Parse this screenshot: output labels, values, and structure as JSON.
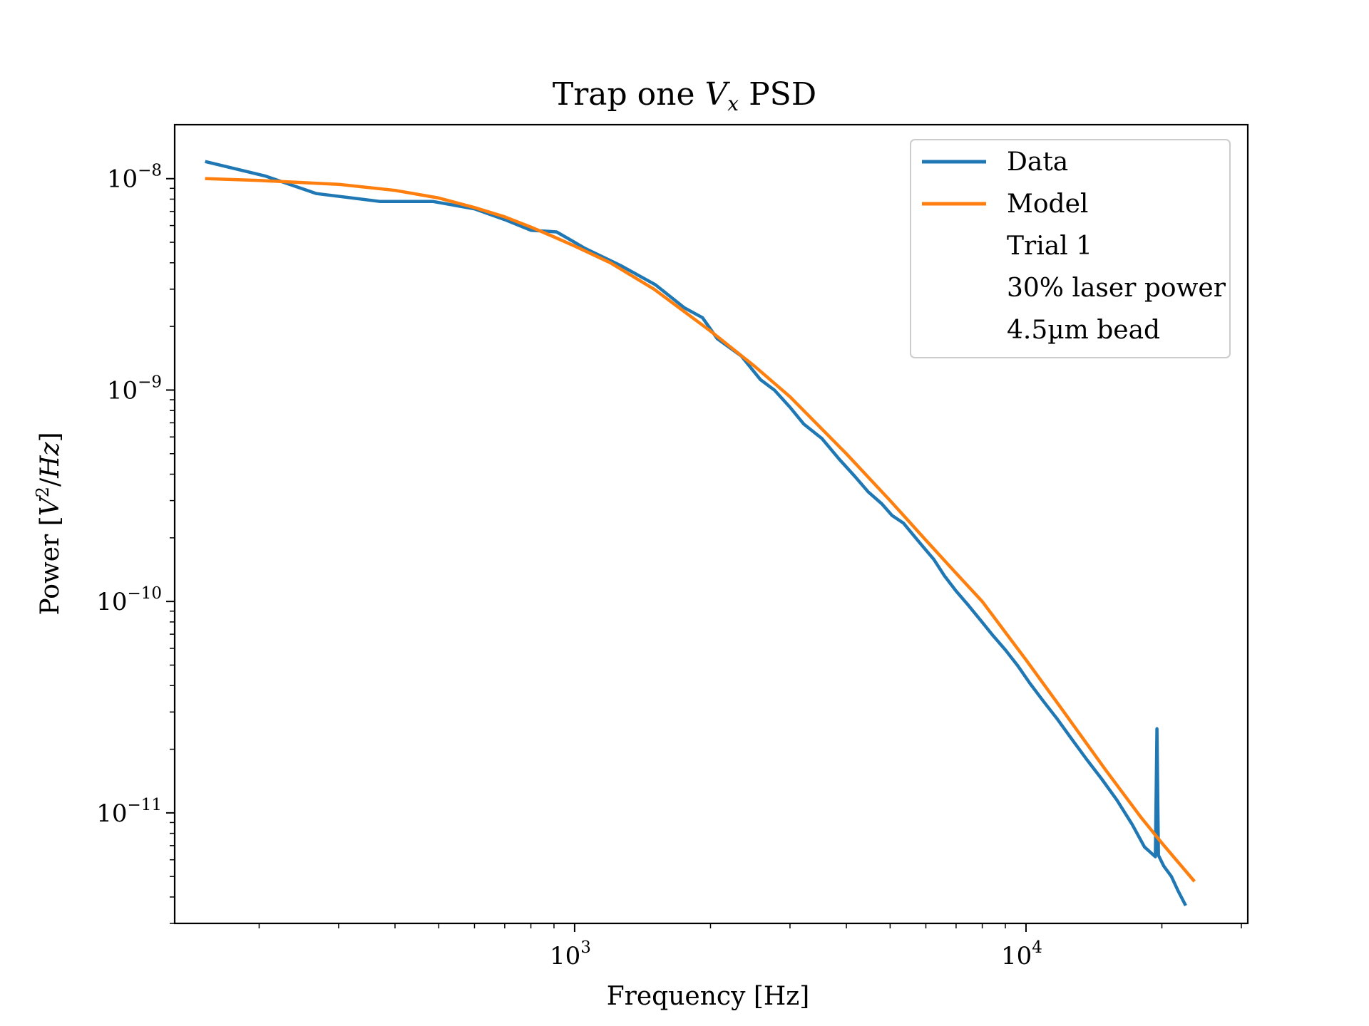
{
  "chart_data": {
    "type": "line",
    "title": {
      "before": "Trap one ",
      "var": "V",
      "sub": "x",
      "after": " PSD"
    },
    "xlabel": "Frequency [Hz]",
    "ylabel": {
      "before": "Power [",
      "v": "V",
      "sup": "2",
      "mid": "/",
      "hz": "Hz",
      "after": "]"
    },
    "x_scale": "log",
    "y_scale": "log",
    "xlim": [
      130,
      31000
    ],
    "ylim": [
      3e-12,
      1.8e-08
    ],
    "grid": false,
    "legend_position": "upper right",
    "x_ticks": [
      {
        "value": 1000,
        "base": "10",
        "exp": "3"
      },
      {
        "value": 10000,
        "base": "10",
        "exp": "4"
      }
    ],
    "y_ticks": [
      {
        "value": 1e-08,
        "base": "10",
        "exp": "−8"
      },
      {
        "value": 1e-09,
        "base": "10",
        "exp": "−9"
      },
      {
        "value": 1e-10,
        "base": "10",
        "exp": "−10"
      },
      {
        "value": 1e-11,
        "base": "10",
        "exp": "−11"
      }
    ],
    "legend": [
      {
        "label": "Data",
        "color": "#1f77b4"
      },
      {
        "label": "Model",
        "color": "#ff7f0e"
      },
      {
        "label": "Trial 1"
      },
      {
        "label": "30% laser power"
      },
      {
        "label": "4.5µm bead"
      }
    ],
    "series": [
      {
        "name": "Data",
        "color": "#1f77b4",
        "x": [
          153,
          206,
          268,
          371,
          486,
          600,
          700,
          800,
          912,
          1000,
          1050,
          1260,
          1510,
          1750,
          1920,
          2070,
          2340,
          2580,
          2770,
          3000,
          3220,
          3530,
          3860,
          4180,
          4470,
          4790,
          5050,
          5350,
          5750,
          6250,
          6600,
          7000,
          7450,
          7950,
          8450,
          9000,
          9600,
          10200,
          10900,
          11700,
          12600,
          13600,
          14700,
          15900,
          17200,
          18300,
          19350,
          19500,
          19650,
          20200,
          21000,
          21700,
          22500
        ],
        "y": [
          1.2e-08,
          1.03e-08,
          8.5e-09,
          7.8e-09,
          7.8e-09,
          7.2e-09,
          6.4e-09,
          5.7e-09,
          5.6e-09,
          5e-09,
          4.7e-09,
          3.9e-09,
          3.15e-09,
          2.45e-09,
          2.2e-09,
          1.75e-09,
          1.45e-09,
          1.12e-09,
          1e-09,
          8.3e-10,
          6.9e-10,
          5.9e-10,
          4.7e-10,
          3.9e-10,
          3.3e-10,
          2.9e-10,
          2.55e-10,
          2.35e-10,
          1.95e-10,
          1.58e-10,
          1.32e-10,
          1.12e-10,
          9.6e-11,
          8.1e-11,
          6.9e-11,
          5.9e-11,
          4.95e-11,
          4.1e-11,
          3.4e-11,
          2.8e-11,
          2.25e-11,
          1.8e-11,
          1.45e-11,
          1.15e-11,
          8.8e-12,
          6.9e-12,
          6.2e-12,
          2.5e-11,
          6.3e-12,
          5.6e-12,
          5e-12,
          4.3e-12,
          3.7e-12
        ]
      },
      {
        "name": "Model",
        "color": "#ff7f0e",
        "x": [
          153,
          200,
          300,
          400,
          500,
          600,
          700,
          800,
          900,
          1000,
          1200,
          1500,
          2000,
          2500,
          3000,
          4000,
          5000,
          6000,
          7000,
          8000,
          10000,
          12000,
          15000,
          18000,
          20000,
          23500
        ],
        "y": [
          1e-08,
          9.8e-09,
          9.4e-09,
          8.8e-09,
          8.1e-09,
          7.3e-09,
          6.6e-09,
          5.9e-09,
          5.3e-09,
          4.8e-09,
          4e-09,
          3e-09,
          1.9e-09,
          1.3e-09,
          9.3e-10,
          5e-10,
          3e-10,
          1.95e-10,
          1.36e-10,
          1e-10,
          5.3e-11,
          3.1e-11,
          1.6e-11,
          9.5e-12,
          7.2e-12,
          4.8e-12
        ]
      }
    ]
  }
}
